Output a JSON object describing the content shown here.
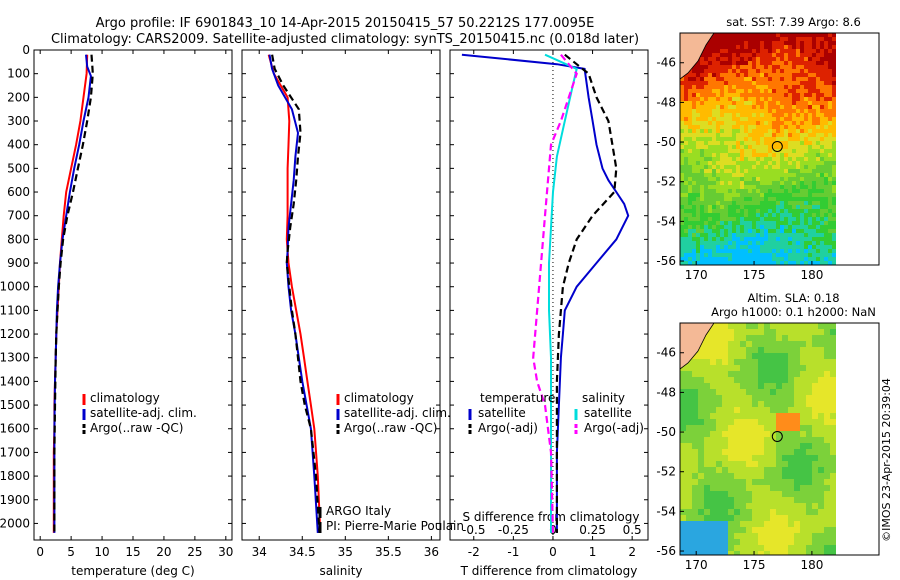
{
  "title": {
    "line1": "Argo profile: IF 6901843_10 14-Apr-2015 20150415_57 50.2212S 177.0095E",
    "line2": "Climatology: CARS2009. Satellite-adjusted climatology: synTS_20150415.nc (0.018d later)"
  },
  "side_label": "©IMOS 23-Apr-2015 20:39:04",
  "colors": {
    "climatology": "#ff0000",
    "satellite": "#0000cc",
    "argo": "#000000",
    "salinity_satellite": "#00dddd",
    "salinity_argo": "#ff00ff"
  },
  "chart_data": [
    {
      "id": "temperature",
      "type": "line",
      "xlabel": "temperature (deg C)",
      "xlim": [
        -1,
        31
      ],
      "xticks": [
        0,
        5,
        10,
        15,
        20,
        25,
        30
      ],
      "ylim": [
        0,
        2070
      ],
      "yticks": [
        0,
        100,
        200,
        300,
        400,
        500,
        600,
        700,
        800,
        900,
        1000,
        1100,
        1200,
        1300,
        1400,
        1500,
        1600,
        1700,
        1800,
        1900,
        2000
      ],
      "legend": [
        "climatology",
        "satellite-adj. clim.",
        "Argo(..raw -QC)"
      ],
      "series": [
        {
          "name": "climatology",
          "color": "climatology",
          "dash": false,
          "x": [
            7.6,
            7.5,
            7.0,
            6.5,
            5.8,
            5.0,
            4.2,
            3.8,
            3.5,
            3.2,
            3.0,
            2.8,
            2.6,
            2.5,
            2.4,
            2.3,
            2.3,
            2.2,
            2.2,
            2.2
          ],
          "y": [
            20,
            100,
            200,
            300,
            400,
            500,
            600,
            700,
            800,
            900,
            1000,
            1100,
            1200,
            1300,
            1400,
            1500,
            1600,
            1700,
            1900,
            2040
          ]
        },
        {
          "name": "satellite-adj. clim.",
          "color": "satellite",
          "dash": false,
          "x": [
            7.4,
            7.6,
            8.2,
            7.8,
            7.0,
            6.3,
            5.5,
            4.8,
            4.2,
            3.6,
            3.2,
            2.9,
            2.7,
            2.6,
            2.5,
            2.4,
            2.3,
            2.3,
            2.3
          ],
          "y": [
            20,
            70,
            110,
            200,
            300,
            400,
            500,
            600,
            700,
            800,
            900,
            1000,
            1100,
            1200,
            1300,
            1400,
            1600,
            1800,
            2040
          ]
        },
        {
          "name": "Argo(..raw -QC)",
          "color": "argo",
          "dash": true,
          "x": [
            8.3,
            8.4,
            8.5,
            8.2,
            7.6,
            6.9,
            6.1,
            5.3,
            4.4,
            3.7,
            3.3,
            3.0,
            2.8,
            2.6,
            2.5,
            2.4,
            2.3,
            2.3
          ],
          "y": [
            20,
            60,
            100,
            200,
            300,
            400,
            500,
            600,
            700,
            800,
            900,
            1000,
            1100,
            1200,
            1300,
            1500,
            1700,
            2040
          ]
        }
      ]
    },
    {
      "id": "salinity",
      "type": "line",
      "xlabel": "salinity",
      "xlim": [
        33.8,
        36.1
      ],
      "xticks": [
        34,
        34.5,
        35,
        35.5,
        36
      ],
      "ylim": [
        0,
        2070
      ],
      "legend": [
        "climatology",
        "satellite-adj. clim.",
        "Argo(..raw -QC)"
      ],
      "annotation": [
        "ARGO Italy",
        "PI: Pierre-Marie Poulain"
      ],
      "series": [
        {
          "name": "climatology",
          "color": "climatology",
          "dash": false,
          "x": [
            34.11,
            34.17,
            34.25,
            34.33,
            34.35,
            34.34,
            34.33,
            34.33,
            34.33,
            34.32,
            34.34,
            34.38,
            34.43,
            34.48,
            34.52,
            34.56,
            34.6,
            34.64,
            34.68,
            34.71
          ],
          "y": [
            20,
            100,
            150,
            200,
            300,
            400,
            500,
            600,
            700,
            800,
            900,
            1000,
            1100,
            1200,
            1300,
            1400,
            1500,
            1600,
            1800,
            2040
          ]
        },
        {
          "name": "satellite-adj. clim.",
          "color": "satellite",
          "dash": false,
          "x": [
            34.12,
            34.15,
            34.22,
            34.38,
            34.45,
            34.42,
            34.4,
            34.37,
            34.34,
            34.33,
            34.32,
            34.34,
            34.37,
            34.42,
            34.46,
            34.5,
            34.55,
            34.6,
            34.64,
            34.68
          ],
          "y": [
            20,
            80,
            150,
            250,
            350,
            450,
            550,
            650,
            750,
            850,
            900,
            1000,
            1100,
            1200,
            1300,
            1400,
            1500,
            1600,
            1800,
            2040
          ]
        },
        {
          "name": "Argo(..raw -QC)",
          "color": "argo",
          "dash": true,
          "x": [
            34.15,
            34.18,
            34.28,
            34.46,
            34.48,
            34.45,
            34.43,
            34.4,
            34.36,
            34.33,
            34.32,
            34.35,
            34.38,
            34.42,
            34.45,
            34.48,
            34.53,
            34.6,
            34.66,
            34.7
          ],
          "y": [
            20,
            80,
            150,
            250,
            350,
            450,
            550,
            650,
            750,
            850,
            900,
            1000,
            1100,
            1200,
            1300,
            1400,
            1500,
            1600,
            1800,
            2040
          ]
        }
      ]
    },
    {
      "id": "difference",
      "type": "line",
      "xlabel": "T difference from climatology",
      "xlabel_top": "S difference from climatology",
      "xlim": [
        -2.6,
        2.4
      ],
      "xticks": [
        -2,
        -1,
        0,
        1,
        2
      ],
      "xticks_top_labels": [
        "-0.5",
        "-0.25",
        "0",
        "0.25",
        "0.5"
      ],
      "xticks_top_pos": [
        -2,
        -1,
        0,
        1,
        2
      ],
      "ylim": [
        0,
        2070
      ],
      "legend_groups": {
        "temperature": [
          "satellite",
          "Argo(-adj)"
        ],
        "salinity": [
          "satellite",
          "Argo(-adj)"
        ]
      },
      "series": [
        {
          "name": "temperature satellite",
          "color": "satellite",
          "dash": false,
          "x": [
            -2.3,
            0.1,
            0.8,
            0.9,
            1.0,
            1.1,
            1.25,
            1.4,
            1.6,
            1.8,
            1.9,
            1.6,
            1.1,
            0.6,
            0.3,
            0.25,
            0.2,
            0.15,
            0.1,
            0.1,
            0.1
          ],
          "y": [
            20,
            60,
            80,
            200,
            300,
            400,
            500,
            550,
            600,
            650,
            700,
            800,
            900,
            1000,
            1100,
            1200,
            1300,
            1500,
            1700,
            1900,
            2040
          ]
        },
        {
          "name": "temperature Argo(-adj)",
          "color": "argo",
          "dash": true,
          "x": [
            0.3,
            0.9,
            1.1,
            1.4,
            1.5,
            1.6,
            1.55,
            1.0,
            0.6,
            0.4,
            0.25,
            0.15,
            0.1,
            0.1,
            0.1
          ],
          "y": [
            20,
            100,
            200,
            300,
            400,
            500,
            600,
            700,
            800,
            900,
            1000,
            1200,
            1400,
            1700,
            2040
          ]
        },
        {
          "name": "salinity satellite",
          "color": "salinity_satellite",
          "dash": false,
          "x": [
            -0.2,
            0.6,
            0.5,
            0.3,
            0.1,
            0,
            -0.05,
            -0.1,
            -0.1,
            -0.05,
            -0.05,
            -0.05
          ],
          "y": [
            20,
            80,
            150,
            300,
            450,
            600,
            750,
            900,
            1100,
            1300,
            1700,
            2040
          ]
        },
        {
          "name": "salinity Argo(-adj)",
          "color": "salinity_argo",
          "dash": true,
          "x": [
            0.2,
            0.6,
            0.4,
            0.2,
            -0.05,
            -0.1,
            -0.15,
            -0.2,
            -0.3,
            -0.5,
            -0.4,
            -0.2,
            -0.05,
            0
          ],
          "y": [
            20,
            100,
            200,
            300,
            400,
            500,
            600,
            700,
            900,
            1300,
            1400,
            1500,
            1700,
            2040
          ]
        }
      ]
    }
  ],
  "maps": {
    "sst": {
      "title": "sat. SST: 7.39 Argo: 8.6",
      "xticks": [
        "170",
        "175",
        "180"
      ],
      "yticks": [
        "-46",
        "-48",
        "-50",
        "-52",
        "-54",
        "-56"
      ],
      "marker": {
        "lon": 177.0095,
        "lat": -50.2212
      }
    },
    "sla": {
      "title_line1": "Altim. SLA: 0.18",
      "title_line2": "Argo h1000: 0.1 h2000: NaN",
      "xticks": [
        "170",
        "175",
        "180"
      ],
      "yticks": [
        "-46",
        "-48",
        "-50",
        "-52",
        "-54",
        "-56"
      ],
      "marker": {
        "lon": 177.0095,
        "lat": -50.2212
      }
    }
  }
}
